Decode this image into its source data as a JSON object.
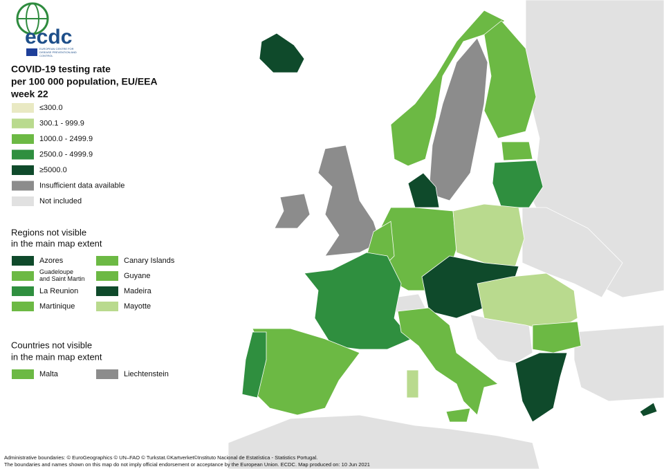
{
  "logo": {
    "name": "ecdc",
    "subtitle": "EUROPEAN CENTRE FOR DISEASE PREVENTION AND CONTROL"
  },
  "title": [
    "COVID-19 testing rate",
    "per 100 000 population, EU/EEA",
    "week 22"
  ],
  "legend": [
    {
      "label": "≤300.0",
      "color": "#e9e9c3"
    },
    {
      "label": "300.1 - 999.9",
      "color": "#b9da8e"
    },
    {
      "label": "1000.0 - 2499.9",
      "color": "#6cb944"
    },
    {
      "label": "2500.0 - 4999.9",
      "color": "#2f8f3f"
    },
    {
      "label": "≥5000.0",
      "color": "#0f4a2b"
    },
    {
      "label": "Insufficient data available",
      "color": "#8c8c8c"
    },
    {
      "label": "Not included",
      "color": "#e1e1e1"
    }
  ],
  "regions": {
    "heading": [
      "Regions not visible",
      "in the main map extent"
    ],
    "items": [
      {
        "label": "Azores",
        "color": "#0f4a2b"
      },
      {
        "label": "Guadeloupe and Saint Martin",
        "color": "#6cb944"
      },
      {
        "label": "La Reunion",
        "color": "#2f8f3f"
      },
      {
        "label": "Martinique",
        "color": "#6cb944"
      },
      {
        "label": "Canary Islands",
        "color": "#6cb944"
      },
      {
        "label": "Guyane",
        "color": "#6cb944"
      },
      {
        "label": "Madeira",
        "color": "#0f4a2b"
      },
      {
        "label": "Mayotte",
        "color": "#b9da8e"
      }
    ]
  },
  "countries": {
    "heading": [
      "Countries not visible",
      "in the main map extent"
    ],
    "items": [
      {
        "label": "Malta",
        "color": "#6cb944"
      },
      {
        "label": "Liechtenstein",
        "color": "#8c8c8c"
      }
    ]
  },
  "footer": [
    "Administrative boundaries: © EuroGeographics © UN–FAO © Turkstat.©Kartverket©Instituto Nacional de Estatística - Statistics Portugal.",
    "The boundaries and names shown on this map do not imply official endorsement or acceptance by the European Union. ECDC. Map produced on: 10 Jun 2021"
  ]
}
